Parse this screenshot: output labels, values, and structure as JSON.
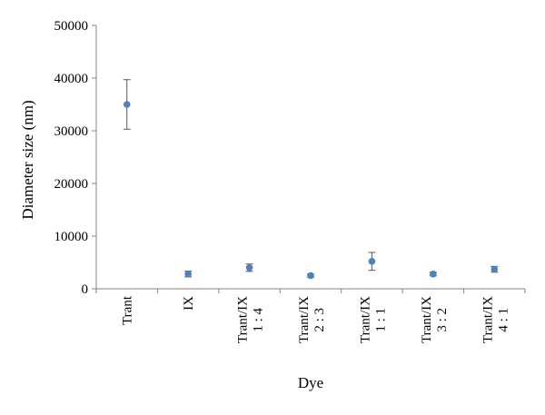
{
  "chart_data": {
    "type": "scatter",
    "title": "",
    "xlabel": "Dye",
    "ylabel": "Diameter size (nm)",
    "ylim": [
      0,
      50000
    ],
    "yticks": [
      0,
      10000,
      20000,
      30000,
      40000,
      50000
    ],
    "ytick_labels": [
      "0",
      "10000",
      "20000",
      "30000",
      "40000",
      "50000"
    ],
    "grid": false,
    "legend": "none",
    "marker_color": "#4f81bd",
    "errorbar_color": "#595959",
    "categories": [
      {
        "line1": "Trant",
        "line2": ""
      },
      {
        "line1": "IX",
        "line2": ""
      },
      {
        "line1": "Trant/IX",
        "line2": "1 : 4"
      },
      {
        "line1": "Trant/IX",
        "line2": "2 : 3"
      },
      {
        "line1": "Trant/IX",
        "line2": "1 : 1"
      },
      {
        "line1": "Trant/IX",
        "line2": "3 : 2"
      },
      {
        "line1": "Trant/IX",
        "line2": "4 : 1"
      }
    ],
    "values": [
      35000,
      2800,
      4000,
      2500,
      5200,
      2800,
      3700
    ],
    "errors": [
      4700,
      550,
      700,
      300,
      1700,
      350,
      550
    ]
  }
}
